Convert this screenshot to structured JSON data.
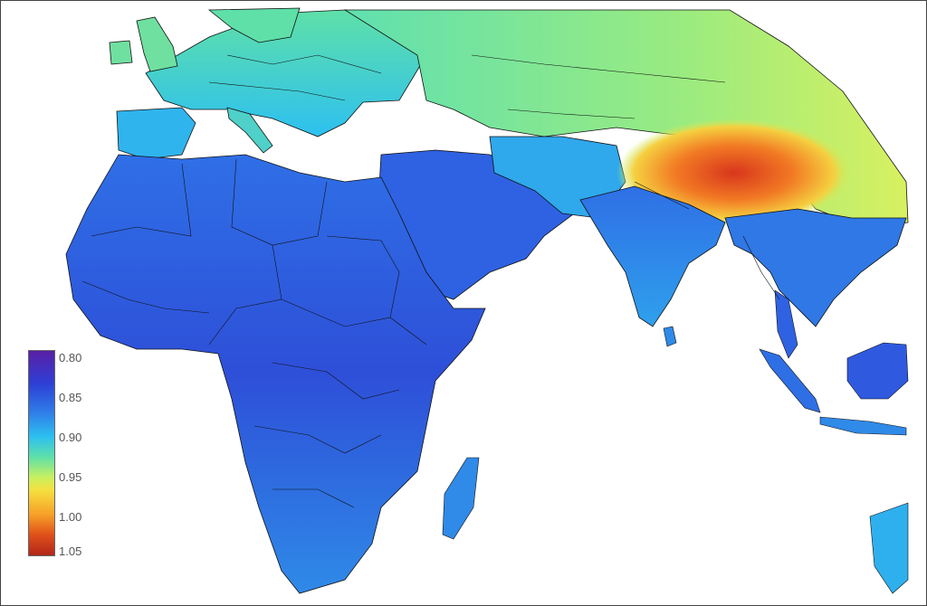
{
  "legend": {
    "ticks": [
      "0.80",
      "0.85",
      "0.90",
      "0.95",
      "1.00",
      "1.05"
    ],
    "colors": [
      "#5a1fa6",
      "#2e3fd6",
      "#2dc0f0",
      "#c9f060",
      "#f7a028",
      "#b0261a"
    ]
  },
  "map": {
    "region": "Africa, Europe, Middle East, South and Southeast Asia",
    "colors": {
      "low": "#2e3fd6",
      "mid": "#2dc0f0",
      "high": "#c9f060",
      "peak": "#d83a1c",
      "border": "#111111",
      "water": "#ffffff"
    }
  }
}
